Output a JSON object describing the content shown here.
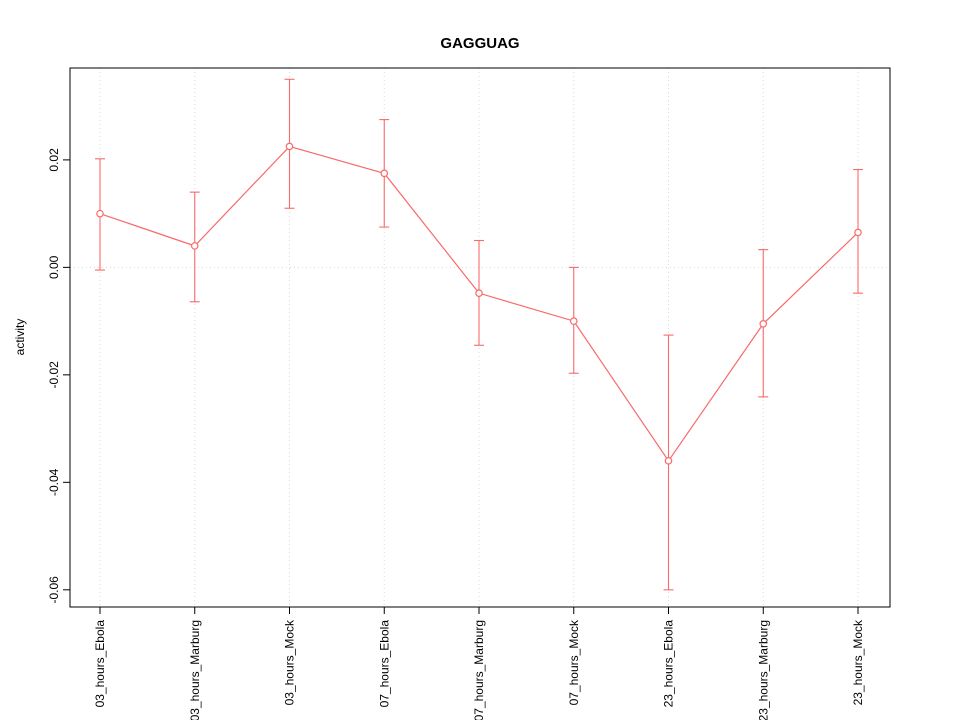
{
  "figure": {
    "background": "#ffffff",
    "frame_color": "#000000",
    "grid_color": "#d8d8d8"
  },
  "chart_data": {
    "type": "line",
    "title": "GAGGUAG",
    "xlabel": "",
    "ylabel": "activity",
    "categories": [
      "03_hours_Ebola",
      "03_hours_Marburg",
      "03_hours_Mock",
      "07_hours_Ebola",
      "07_hours_Marburg",
      "07_hours_Mock",
      "23_hours_Ebola",
      "23_hours_Marburg",
      "23_hours_Mock"
    ],
    "series": [
      {
        "name": "activity",
        "values": [
          0.01,
          0.004,
          0.0225,
          0.0175,
          -0.0048,
          -0.01,
          -0.036,
          -0.0105,
          0.0065
        ],
        "error_low": [
          -0.0005,
          -0.0064,
          0.011,
          0.0075,
          -0.0145,
          -0.0197,
          -0.06,
          -0.0241,
          -0.0048
        ],
        "error_high": [
          0.0202,
          0.014,
          0.035,
          0.0275,
          0.005,
          0.0,
          -0.0126,
          0.0033,
          0.0182
        ]
      }
    ],
    "ylim": [
      -0.0632,
      0.0371
    ],
    "yticks": [
      0.02,
      0.0,
      -0.02,
      -0.04,
      -0.06
    ],
    "grid": {
      "vertical_at_each_category": true,
      "horizontal_at": [
        0
      ],
      "style": "dotted"
    },
    "legend": "none",
    "line_color": "#f96a6a",
    "point_style": "open-circle"
  }
}
